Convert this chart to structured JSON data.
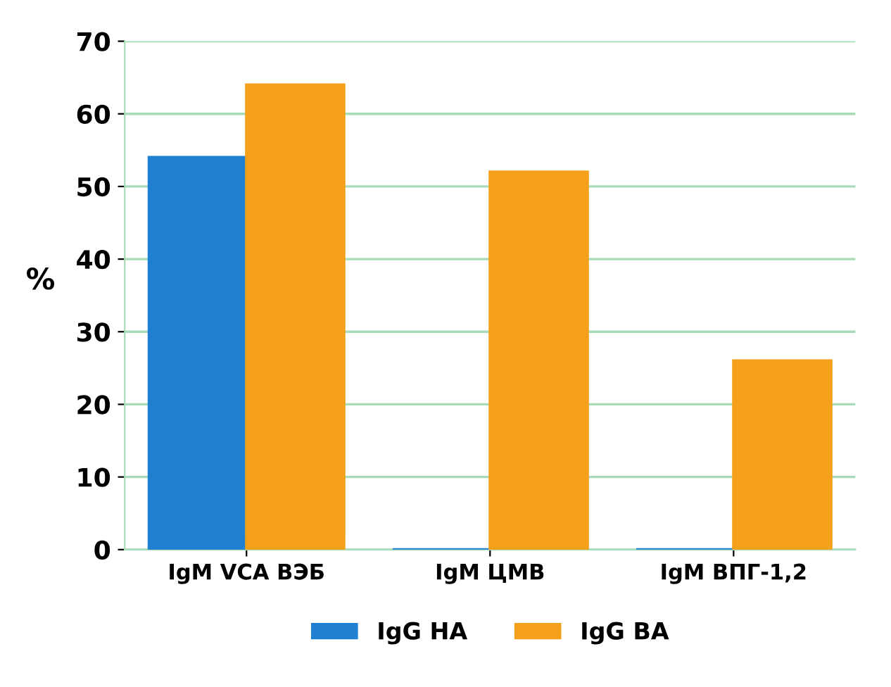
{
  "chart_data": {
    "type": "bar",
    "ylabel": "%",
    "categories": [
      "IgM VCA ВЭБ",
      "IgM ЦМВ",
      "IgM ВПГ-1,2"
    ],
    "series": [
      {
        "name": "IgG HA",
        "color": "#1f7fd0",
        "values": [
          54,
          0,
          0
        ]
      },
      {
        "name": "IgG BA",
        "color": "#f5a01a",
        "values": [
          64,
          52,
          26
        ]
      }
    ],
    "ylim": [
      0,
      70
    ],
    "yticks": [
      0,
      10,
      20,
      30,
      40,
      50,
      60,
      70
    ],
    "grid": "y",
    "legend": "bottom"
  }
}
